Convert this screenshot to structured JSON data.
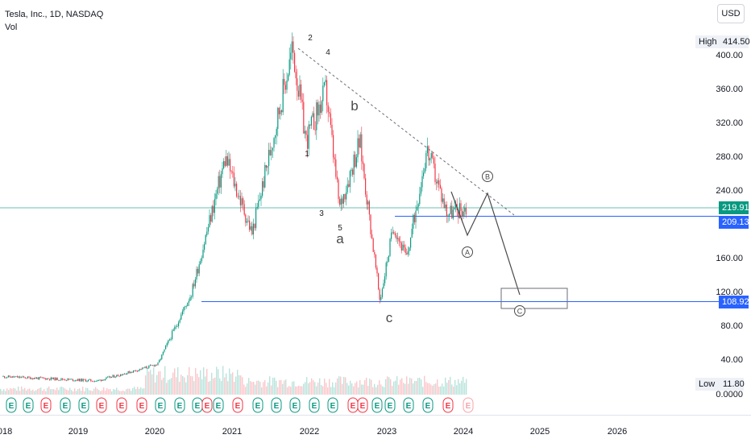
{
  "legend": {
    "symbol": "Tesla, Inc., 1D, NASDAQ",
    "volume_label": "Vol"
  },
  "currency_button": "USD",
  "price_tags": {
    "high_label": "High",
    "high_value": "414.50",
    "low_label": "Low",
    "low_value": "11.80",
    "current": "219.91",
    "level_upper": "209.13",
    "level_lower": "108.92"
  },
  "price_axis_labels": [
    "400.00",
    "360.00",
    "320.00",
    "280.00",
    "240.00",
    "160.00",
    "120.00",
    "80.00",
    "40.00",
    "0.0000"
  ],
  "time_axis_labels": [
    "018",
    "2019",
    "2020",
    "2021",
    "2022",
    "2023",
    "2024",
    "2025",
    "2026"
  ],
  "wave_labels": {
    "w1": "1",
    "w2": "2",
    "w3": "3",
    "w4": "4",
    "w5": "5",
    "wa": "a",
    "wb": "b",
    "wc": "c",
    "cA": "A",
    "cB": "B",
    "cC": "C"
  },
  "colors": {
    "up": "#089981",
    "down": "#f23645",
    "level_line": "#2962ff",
    "current_line": "#089981",
    "annotation": "#4a4a4a"
  },
  "chart_data": {
    "type": "candlestick",
    "title": "Tesla, Inc., 1D, NASDAQ",
    "ylim": [
      0,
      420
    ],
    "high": 414.5,
    "low": 11.8,
    "current": 219.91,
    "horizontal_levels": [
      209.13,
      108.92
    ],
    "approx_path": [
      {
        "x": "2018-04",
        "y": 20
      },
      {
        "x": "2019-06",
        "y": 15
      },
      {
        "x": "2019-12",
        "y": 28
      },
      {
        "x": "2020-03",
        "y": 35
      },
      {
        "x": "2020-08",
        "y": 120
      },
      {
        "x": "2021-01",
        "y": 280
      },
      {
        "x": "2021-05",
        "y": 190
      },
      {
        "x": "2021-11",
        "y": 410
      },
      {
        "x": "2022-01",
        "y": 300
      },
      {
        "x": "2022-04",
        "y": 360
      },
      {
        "x": "2022-06",
        "y": 220
      },
      {
        "x": "2022-09",
        "y": 300
      },
      {
        "x": "2022-12",
        "y": 110
      },
      {
        "x": "2023-02",
        "y": 200
      },
      {
        "x": "2023-04",
        "y": 160
      },
      {
        "x": "2023-07",
        "y": 290
      },
      {
        "x": "2023-10",
        "y": 215
      },
      {
        "x": "2024-01",
        "y": 219.91
      }
    ]
  }
}
